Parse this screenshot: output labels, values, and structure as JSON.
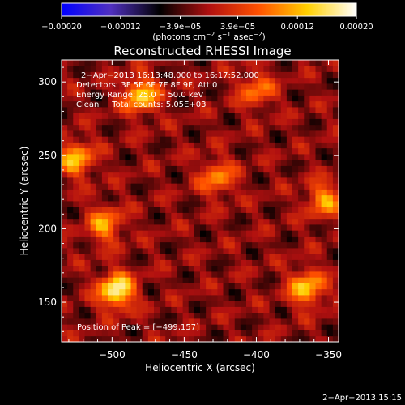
{
  "chart_data": {
    "type": "heatmap",
    "title": "Reconstructed RHESSI Image",
    "xlabel": "Heliocentric X (arcsec)",
    "ylabel": "Heliocentric Y (arcsec)",
    "xlim": [
      -535,
      -343
    ],
    "ylim": [
      123,
      315
    ],
    "x_ticks": [
      -500,
      -450,
      -400,
      -350
    ],
    "x_tick_labels": [
      "−500",
      "−450",
      "−400",
      "−350"
    ],
    "y_ticks": [
      150,
      200,
      250,
      300
    ],
    "y_tick_labels": [
      "150",
      "200",
      "250",
      "300"
    ],
    "colorbar": {
      "range": [
        -0.0002,
        0.0002
      ],
      "ticks": [
        -0.0002,
        -0.00012,
        -3.9e-05,
        3.9e-05,
        0.00012,
        0.0002
      ],
      "tick_labels": [
        "−0.00020",
        "−0.00012",
        "−3.9e−05",
        "3.9e−05",
        "0.00012",
        "0.00020"
      ],
      "units_label": {
        "prefix": "(photons cm",
        "exp1": "−2",
        "mid": " s",
        "exp2": "−1",
        "mid2": " asec",
        "exp3": "−2",
        "suffix": ")"
      },
      "stops": [
        "#0000ff",
        "#5030c0",
        "#000000",
        "#b01010",
        "#ff5000",
        "#ffd000",
        "#ffffff"
      ]
    },
    "annotations": [
      "2−Apr−2013 16:13:48.000 to 16:17:52.000",
      "Detectors: 3F 5F 6F 7F 8F 9F, Att 0",
      "Energy Range: 25.0 − 50.0 keV",
      "Clean     Total counts: 5.05E+03"
    ],
    "peak_label": "Position of Peak = [−499,157]",
    "peak": [
      -499,
      157
    ],
    "bright_sources": [
      {
        "x": -497,
        "y": 158,
        "strength": 1.0
      },
      {
        "x": -480,
        "y": 291,
        "strength": 0.8
      },
      {
        "x": -525,
        "y": 248,
        "strength": 0.7
      },
      {
        "x": -505,
        "y": 203,
        "strength": 0.6
      },
      {
        "x": -365,
        "y": 160,
        "strength": 0.75
      },
      {
        "x": -353,
        "y": 220,
        "strength": 0.6
      },
      {
        "x": -427,
        "y": 235,
        "strength": 0.55
      },
      {
        "x": -400,
        "y": 295,
        "strength": 0.5
      }
    ]
  },
  "footer_timestamp": "2−Apr−2013 15:15"
}
